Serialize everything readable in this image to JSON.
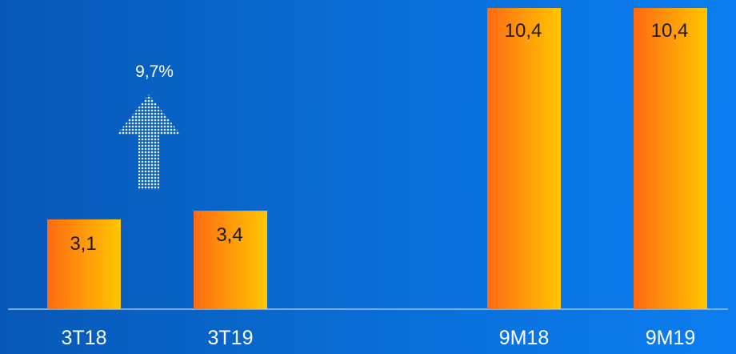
{
  "chart_data": {
    "type": "bar",
    "categories": [
      "3T18",
      "3T19",
      "9M18",
      "9M19"
    ],
    "values": [
      3.1,
      3.4,
      10.4,
      10.4
    ],
    "value_labels": [
      "3,1",
      "3,4",
      "10,4",
      "10,4"
    ],
    "title": "",
    "xlabel": "",
    "ylabel": "",
    "ylim": [
      0,
      10.4
    ],
    "grid": false,
    "annotations": [
      {
        "text": "9,7%",
        "icon": "up-arrow-icon"
      }
    ],
    "colors": {
      "bar_start": "#ff6a13",
      "bar_end": "#ffc700",
      "axis": "#9ec2ea",
      "arrow": "#e6eef8"
    }
  }
}
